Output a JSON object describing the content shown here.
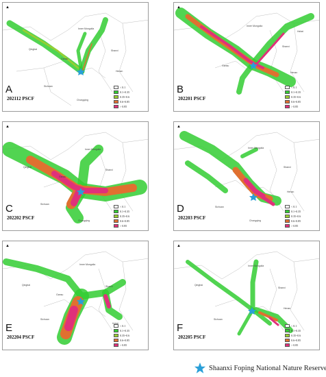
{
  "panels": [
    {
      "letter": "A",
      "title": "202112 PSCF"
    },
    {
      "letter": "B",
      "title": "202201 PSCF"
    },
    {
      "letter": "C",
      "title": "202202 PSCF"
    },
    {
      "letter": "D",
      "title": "202203 PSCF"
    },
    {
      "letter": "E",
      "title": "202204 PSCF"
    },
    {
      "letter": "F",
      "title": "202205 PSCF"
    }
  ],
  "legend": {
    "items": [
      {
        "label": "< 0.1",
        "color": "#ffffff"
      },
      {
        "label": "0.1~0.35",
        "color": "#33cc33"
      },
      {
        "label": "0.35~0.6",
        "color": "#9acd32"
      },
      {
        "label": "0.6~0.85",
        "color": "#e07030"
      },
      {
        "label": "> 0.85",
        "color": "#e0307a"
      }
    ]
  },
  "place_labels": {
    "inner_mongolia": "Inner Mongolia",
    "qinghai": "Qinghai",
    "gansu": "Gansu",
    "shanxi": "Shanxi",
    "hebei": "Hebei",
    "henan": "Henan",
    "sichuan": "Sichuan",
    "chongqing": "Chongqing",
    "hubei": "Hubei"
  },
  "footer": {
    "marker_label": "Shaanxi Foping National Nature Reserve",
    "marker_color": "#2a9fd8"
  }
}
